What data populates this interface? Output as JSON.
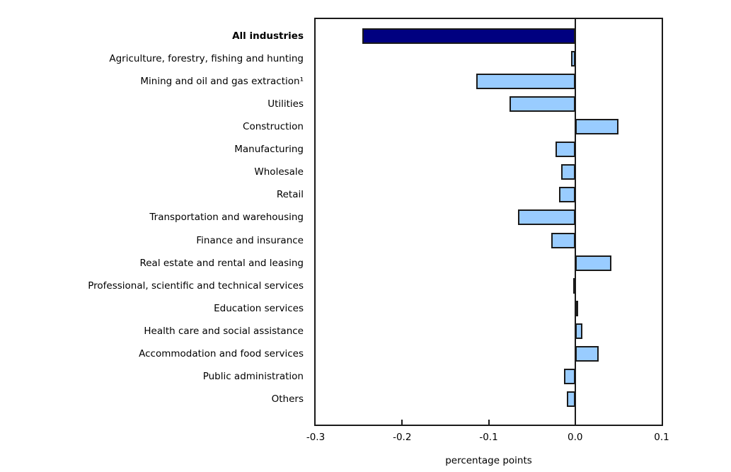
{
  "chart_data": {
    "type": "bar",
    "orientation": "horizontal",
    "title": "",
    "xlabel": "percentage points",
    "ylabel": "",
    "xlim": [
      -0.3,
      0.1
    ],
    "xticks": [
      -0.3,
      -0.2,
      -0.1,
      0.0,
      0.1
    ],
    "xtick_labels": [
      "-0.3",
      "-0.2",
      "-0.1",
      "0.0",
      "0.1"
    ],
    "grid": false,
    "legend": false,
    "categories": [
      "All industries",
      "Agriculture, forestry, fishing and hunting",
      "Mining and oil and gas extraction¹",
      "Utilities",
      "Construction",
      "Manufacturing",
      "Wholesale",
      "Retail",
      "Transportation and warehousing",
      "Finance and insurance",
      "Real estate and rental and leasing",
      "Professional, scientific and technical services",
      "Education services",
      "Health care and social assistance",
      "Accommodation and food services",
      "Public administration",
      "Others"
    ],
    "values": [
      -0.246,
      -0.005,
      -0.114,
      -0.076,
      0.05,
      -0.023,
      -0.016,
      -0.019,
      -0.066,
      -0.028,
      0.042,
      -0.002,
      0.001,
      0.008,
      0.027,
      -0.013,
      -0.01
    ],
    "highlight_category": "All industries",
    "colors": {
      "bar_fill": "#99ccff",
      "highlight_fill": "#000080",
      "bar_border": "#1a1a1a",
      "axis": "#1a1a1a",
      "text": "#000000",
      "background": "#ffffff"
    }
  }
}
